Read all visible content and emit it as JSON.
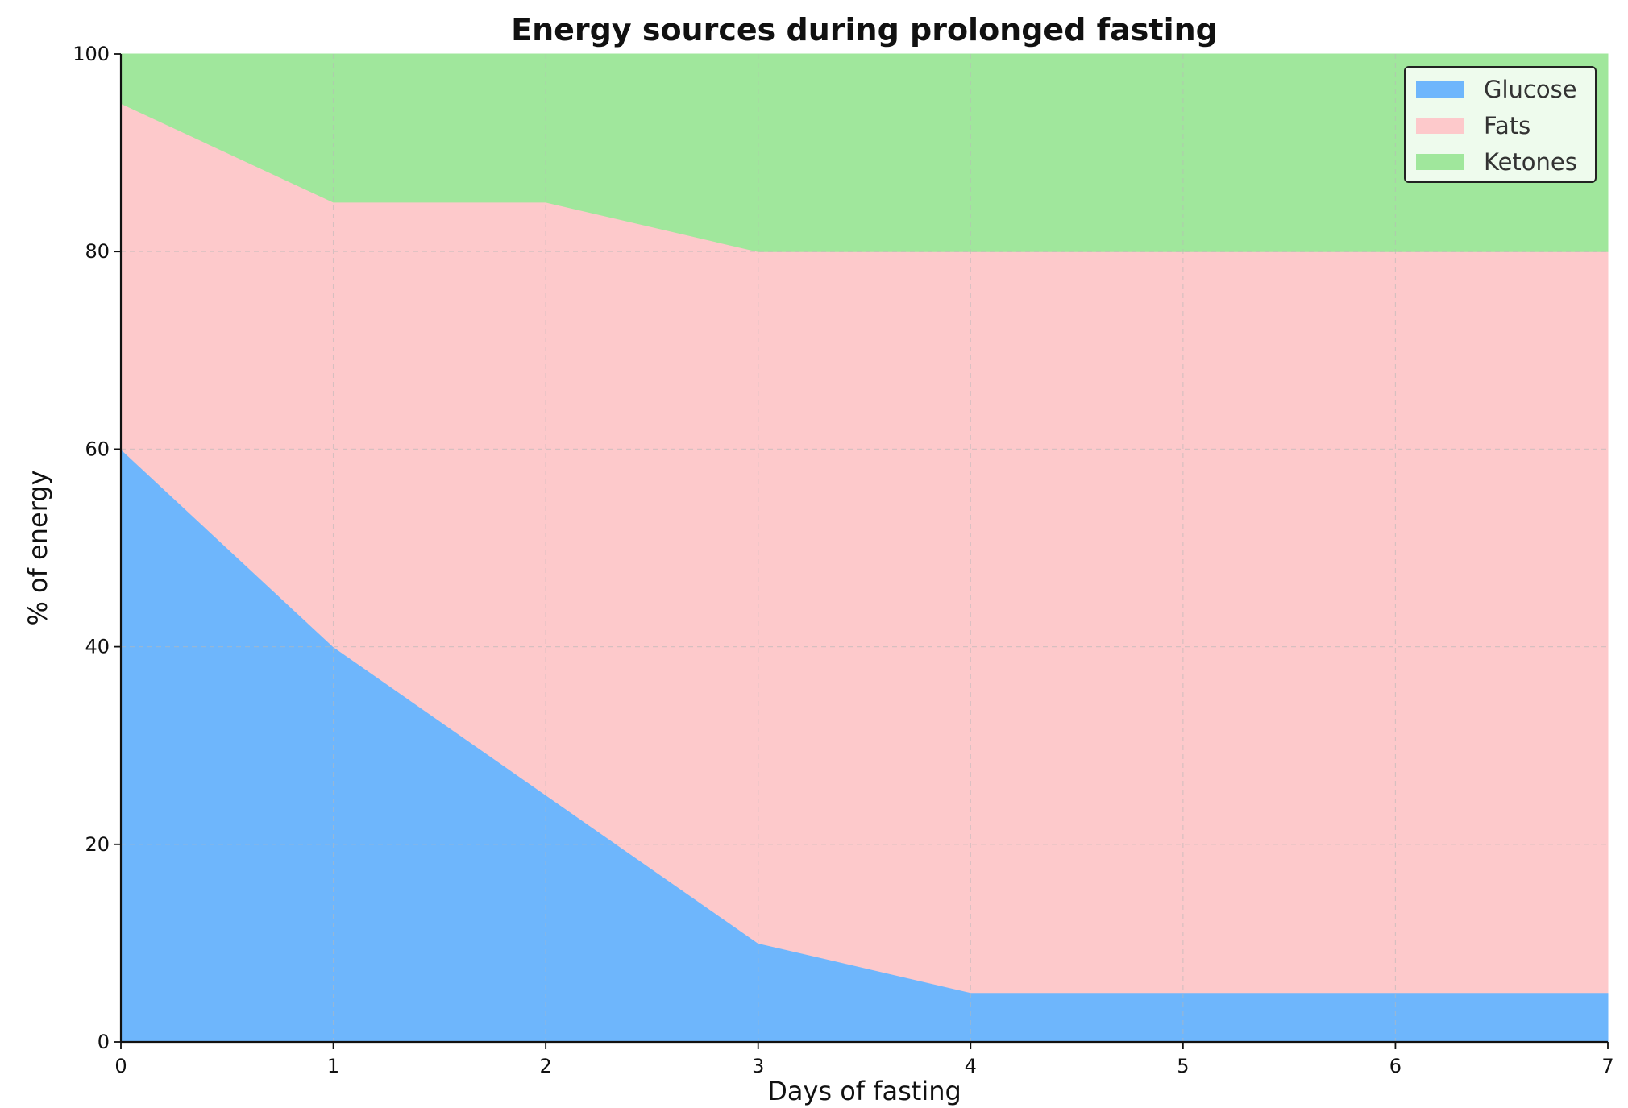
{
  "chart_data": {
    "type": "area",
    "stacked": true,
    "title": "Energy sources during prolonged fasting",
    "xlabel": "Days of fasting",
    "ylabel": "% of energy",
    "x": [
      0,
      1,
      2,
      3,
      4,
      5,
      6,
      7
    ],
    "xlim": [
      0,
      7
    ],
    "ylim": [
      0,
      100
    ],
    "xticks": [
      "0",
      "1",
      "2",
      "3",
      "4",
      "5",
      "6",
      "7"
    ],
    "yticks": [
      "0",
      "20",
      "40",
      "60",
      "80",
      "100"
    ],
    "grid": true,
    "legend_position": "top-right",
    "series": [
      {
        "name": "Glucose",
        "color": "#6eb6fc",
        "values": [
          60,
          40,
          25,
          10,
          5,
          5,
          5,
          5
        ]
      },
      {
        "name": "Fats",
        "color": "#fdc9cb",
        "values": [
          35,
          45,
          60,
          70,
          75,
          75,
          75,
          75
        ]
      },
      {
        "name": "Ketones",
        "color": "#a0e79c",
        "values": [
          5,
          15,
          15,
          20,
          20,
          20,
          20,
          20
        ]
      }
    ]
  }
}
